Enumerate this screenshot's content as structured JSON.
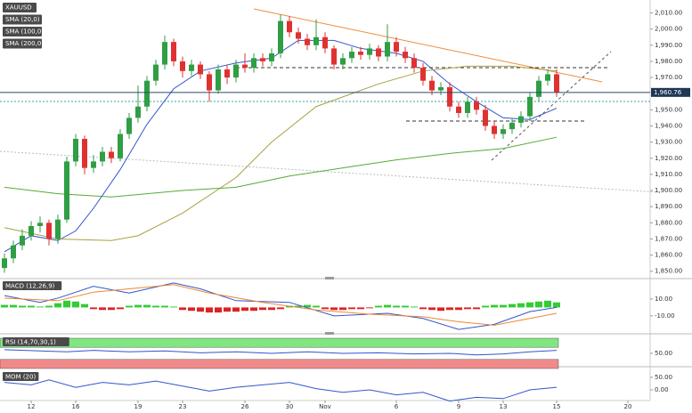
{
  "chart_data": {
    "type": "candlestick",
    "symbol": "XAUUSD",
    "up_color": "#2f9e44",
    "down_color": "#e03131",
    "categories": [
      null,
      null,
      null,
      "12",
      null,
      null,
      null,
      null,
      "16",
      null,
      null,
      null,
      null,
      null,
      null,
      "19",
      null,
      null,
      null,
      null,
      "23",
      null,
      null,
      null,
      null,
      null,
      null,
      "26",
      null,
      null,
      null,
      null,
      "30",
      null,
      null,
      null,
      "Nov",
      null,
      null,
      null,
      null,
      null,
      null,
      null,
      "6",
      null,
      null,
      null,
      null,
      null,
      null,
      "9",
      null,
      null,
      null,
      null,
      "13",
      null,
      null,
      null,
      null,
      null,
      "15",
      null,
      null,
      null,
      null,
      null,
      null,
      null,
      "20"
    ],
    "open": [
      1852,
      1858,
      1866,
      1872,
      1878,
      1880,
      1870,
      1882,
      1918,
      1932,
      1914,
      1918,
      1924,
      1920,
      1935,
      1945,
      1952,
      1968,
      1978,
      1992,
      1980,
      1974,
      1978,
      1972,
      1962,
      1975,
      1970,
      1978,
      1976,
      1982,
      1980,
      1985,
      2005,
      1998,
      1994,
      1990,
      1995,
      1988,
      1978,
      1982,
      1986,
      1984,
      1988,
      1983,
      1992,
      1986,
      1982,
      1976,
      1968,
      1962,
      1964,
      1952,
      1948,
      1955,
      1950,
      1940,
      1935,
      1938,
      1942,
      1946,
      1958,
      1968,
      1972,
      null,
      null,
      null,
      null,
      null,
      null,
      null,
      null
    ],
    "high": [
      1861,
      1869,
      1876,
      1881,
      1884,
      1882,
      1885,
      1921,
      1935,
      1934,
      1922,
      1927,
      1927,
      1938,
      1948,
      1965,
      1971,
      1981,
      1996,
      1994,
      1983,
      1981,
      1980,
      1974,
      1978,
      1978,
      1981,
      1985,
      1985,
      1985,
      1988,
      2009,
      2008,
      2001,
      1997,
      2006,
      1998,
      1990,
      1985,
      1989,
      1989,
      1991,
      1990,
      2003,
      1995,
      1989,
      1985,
      1979,
      1971,
      1967,
      1967,
      1955,
      1958,
      1958,
      1953,
      1943,
      1941,
      1945,
      1949,
      1961,
      1971,
      1975,
      1975,
      null,
      null,
      null,
      null,
      null,
      null,
      null,
      null
    ],
    "low": [
      1849,
      1855,
      1863,
      1869,
      1874,
      1866,
      1867,
      1880,
      1915,
      1910,
      1911,
      1915,
      1917,
      1918,
      1932,
      1942,
      1949,
      1965,
      1975,
      1977,
      1970,
      1971,
      1969,
      1955,
      1960,
      1966,
      1967,
      1973,
      1973,
      1977,
      1977,
      1982,
      1995,
      1991,
      1987,
      1987,
      1985,
      1975,
      1975,
      1979,
      1981,
      1981,
      1980,
      1980,
      1983,
      1979,
      1973,
      1965,
      1959,
      1959,
      1949,
      1945,
      1945,
      1947,
      1937,
      1932,
      1932,
      1935,
      1939,
      1943,
      1955,
      1965,
      1958,
      null,
      null,
      null,
      null,
      null,
      null,
      null,
      null
    ],
    "close": [
      1858,
      1866,
      1872,
      1878,
      1880,
      1870,
      1882,
      1918,
      1932,
      1914,
      1918,
      1924,
      1920,
      1935,
      1945,
      1952,
      1968,
      1978,
      1992,
      1980,
      1974,
      1978,
      1972,
      1962,
      1975,
      1970,
      1978,
      1976,
      1982,
      1980,
      1985,
      2005,
      1998,
      1994,
      1990,
      1995,
      1988,
      1978,
      1982,
      1986,
      1984,
      1988,
      1983,
      1992,
      1986,
      1982,
      1976,
      1968,
      1962,
      1964,
      1952,
      1948,
      1955,
      1950,
      1940,
      1935,
      1938,
      1942,
      1946,
      1958,
      1968,
      1972,
      1961,
      null,
      null,
      null,
      null,
      null,
      null,
      null,
      null
    ],
    "ylim": [
      1846,
      2018
    ],
    "yticks": [
      {
        "value": 2010,
        "label": "2,010.00"
      },
      {
        "value": 2000,
        "label": "2,000.00"
      },
      {
        "value": 1990,
        "label": "1,990.00"
      },
      {
        "value": 1980,
        "label": "1,980.00"
      },
      {
        "value": 1970,
        "label": "1,970.00"
      },
      {
        "value": 1950,
        "label": "1,950.00"
      },
      {
        "value": 1940,
        "label": "1,940.00"
      },
      {
        "value": 1930,
        "label": "1,930.00"
      },
      {
        "value": 1920,
        "label": "1,920.00"
      },
      {
        "value": 1910,
        "label": "1,910.00"
      },
      {
        "value": 1900,
        "label": "1,900.00"
      },
      {
        "value": 1890,
        "label": "1,890.00"
      },
      {
        "value": 1880,
        "label": "1,880.00"
      },
      {
        "value": 1870,
        "label": "1,870.00"
      },
      {
        "value": 1860,
        "label": "1,860.00"
      },
      {
        "value": 1850,
        "label": "1,850.00"
      }
    ],
    "last_price": {
      "value": 1960.76,
      "label": "1,960.76"
    },
    "series": [
      {
        "name": "SMA (20,0)",
        "color": "#3355cc",
        "x": [
          0,
          3,
          6,
          8,
          10,
          13,
          16,
          19,
          22,
          26,
          30,
          33,
          37,
          40,
          44,
          47,
          50,
          53,
          56,
          59,
          62
        ],
        "values": [
          1862,
          1872,
          1869,
          1875,
          1889,
          1913,
          1941,
          1963,
          1974,
          1979,
          1982,
          1993,
          1993,
          1988,
          1985,
          1980,
          1966,
          1955,
          1945,
          1944,
          1951
        ]
      },
      {
        "name": "SMA (100,0)",
        "color": "#a8a040",
        "x": [
          0,
          6,
          12,
          15,
          20,
          26,
          30,
          35,
          42,
          47,
          52,
          57,
          62
        ],
        "values": [
          1877,
          1870,
          1869,
          1872,
          1886,
          1908,
          1930,
          1952,
          1966,
          1974,
          1977,
          1977,
          1974
        ]
      },
      {
        "name": "SMA (200,0)",
        "color": "#55aa33",
        "x": [
          0,
          6,
          12,
          20,
          26,
          32,
          38,
          44,
          50,
          56,
          62
        ],
        "values": [
          1902,
          1898,
          1896,
          1900,
          1902,
          1909,
          1914,
          1919,
          1923,
          1926,
          1933
        ]
      }
    ],
    "indicators": [
      {
        "type": "macd",
        "name": "MACD (12,26,9)",
        "ylim": [
          -28,
          32
        ],
        "yticks": [
          {
            "value": 10,
            "label": "10.00"
          },
          {
            "value": -10,
            "label": "-10.00"
          }
        ],
        "pos_color": "#33cc33",
        "neg_color": "#dd2222",
        "histogram": [
          3,
          3,
          2,
          2,
          1,
          2,
          5,
          8,
          7,
          4,
          -2,
          -3,
          -3,
          -2,
          2,
          3,
          3,
          2,
          2,
          1,
          -3,
          -4,
          -5,
          -6,
          -6,
          -5,
          -5,
          -4,
          -4,
          -3,
          -3,
          -2,
          2,
          2,
          3,
          2,
          -2,
          -3,
          -3,
          -2,
          -2,
          -1,
          2,
          3,
          2,
          2,
          1,
          -2,
          -3,
          -4,
          -3,
          -3,
          -2,
          -2,
          2,
          3,
          3,
          4,
          5,
          6,
          7,
          8,
          6
        ],
        "series": [
          {
            "color": "#3355cc",
            "x": [
              0,
              4,
              6,
              10,
              14,
              19,
              22,
              26,
              32,
              37,
              43,
              47,
              51,
              55,
              59,
              62
            ],
            "values": [
              14,
              6,
              11,
              25,
              17,
              29,
              22,
              8,
              6,
              -10,
              -7,
              -13,
              -26,
              -20,
              -5,
              0
            ]
          },
          {
            "color": "#ee8833",
            "x": [
              0,
              6,
              10,
              14,
              19,
              23,
              29,
              35,
              41,
              47,
              51,
              55,
              59,
              62
            ],
            "values": [
              11,
              8,
              18,
              22,
              27,
              17,
              6,
              -3,
              -8,
              -11,
              -17,
              -21,
              -13,
              -7
            ]
          }
        ]
      },
      {
        "type": "rsi",
        "name": "RSI (14,70,30,1)",
        "ylim": [
          0,
          100
        ],
        "yticks": [
          {
            "value": 50,
            "label": "50.00"
          }
        ],
        "bands": [
          {
            "from": 70,
            "to": 100,
            "color": "#80e680"
          },
          {
            "from": 0,
            "to": 30,
            "color": "#f08a8a"
          }
        ],
        "series": [
          {
            "color": "#3355cc",
            "x": [
              0,
              4,
              7,
              10,
              14,
              18,
              22,
              26,
              30,
              34,
              38,
              42,
              46,
              50,
              53,
              56,
              59,
              62
            ],
            "values": [
              62,
              58,
              55,
              60,
              55,
              58,
              52,
              55,
              50,
              55,
              50,
              52,
              48,
              50,
              45,
              48,
              55,
              60
            ]
          }
        ]
      },
      {
        "type": "mom",
        "name": "MOM (20)",
        "ylim": [
          -50,
          82
        ],
        "yticks": [
          {
            "value": 50,
            "label": "50.00"
          },
          {
            "value": 0,
            "label": "0.00"
          }
        ],
        "series": [
          {
            "color": "#3355cc",
            "x": [
              0,
              3,
              5,
              8,
              11,
              14,
              17,
              20,
              23,
              26,
              29,
              32,
              35,
              38,
              41,
              44,
              47,
              50,
              53,
              56,
              59,
              62
            ],
            "values": [
              30,
              20,
              40,
              10,
              30,
              20,
              35,
              15,
              -5,
              10,
              20,
              30,
              5,
              -10,
              0,
              -20,
              -10,
              -45,
              -30,
              -35,
              0,
              10
            ]
          }
        ]
      }
    ]
  }
}
